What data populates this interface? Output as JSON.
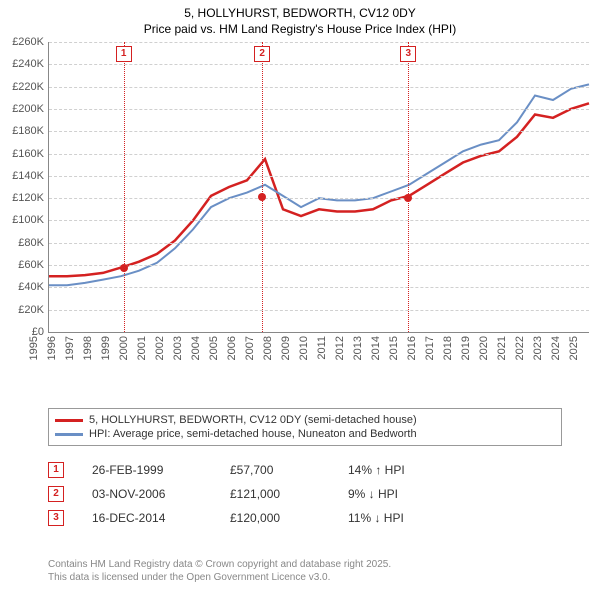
{
  "title_line1": "5, HOLLYHURST, BEDWORTH, CV12 0DY",
  "title_line2": "Price paid vs. HM Land Registry's House Price Index (HPI)",
  "chart": {
    "type": "line",
    "x_years": [
      1995,
      1996,
      1997,
      1998,
      1999,
      2000,
      2001,
      2002,
      2003,
      2004,
      2005,
      2006,
      2007,
      2008,
      2009,
      2010,
      2011,
      2012,
      2013,
      2014,
      2015,
      2016,
      2017,
      2018,
      2019,
      2020,
      2021,
      2022,
      2023,
      2024,
      2025
    ],
    "ylim": [
      0,
      260000
    ],
    "ytick_step": 20000,
    "ytick_prefix": "£",
    "ytick_suffix": "K",
    "background_color": "#ffffff",
    "grid_color": "#d0d0d0",
    "axis_color": "#888888",
    "series": [
      {
        "name": "price_paid",
        "color": "#d42121",
        "width": 2.5,
        "values_by_year": {
          "1995": 50000,
          "1996": 50000,
          "1997": 51000,
          "1998": 53000,
          "1999": 57700,
          "2000": 63000,
          "2001": 70000,
          "2002": 82000,
          "2003": 100000,
          "2004": 122000,
          "2005": 130000,
          "2006": 136000,
          "2007": 155000,
          "2008": 110000,
          "2009": 104000,
          "2010": 110000,
          "2011": 108000,
          "2012": 108000,
          "2013": 110000,
          "2014": 118000,
          "2015": 122000,
          "2016": 132000,
          "2017": 142000,
          "2018": 152000,
          "2019": 158000,
          "2020": 162000,
          "2021": 175000,
          "2022": 195000,
          "2023": 192000,
          "2024": 200000,
          "2025": 205000
        }
      },
      {
        "name": "hpi",
        "color": "#6a8fc5",
        "width": 2,
        "values_by_year": {
          "1995": 42000,
          "1996": 42000,
          "1997": 44000,
          "1998": 47000,
          "1999": 50000,
          "2000": 55000,
          "2001": 62000,
          "2002": 75000,
          "2003": 92000,
          "2004": 112000,
          "2005": 120000,
          "2006": 125000,
          "2007": 132000,
          "2008": 122000,
          "2009": 112000,
          "2010": 120000,
          "2011": 118000,
          "2012": 118000,
          "2013": 120000,
          "2014": 126000,
          "2015": 132000,
          "2016": 142000,
          "2017": 152000,
          "2018": 162000,
          "2019": 168000,
          "2020": 172000,
          "2021": 188000,
          "2022": 212000,
          "2023": 208000,
          "2024": 218000,
          "2025": 222000
        }
      }
    ],
    "sale_markers": [
      {
        "n": "1",
        "year": 1999.15,
        "price": 57700,
        "color": "#d42121"
      },
      {
        "n": "2",
        "year": 2006.84,
        "price": 121000,
        "color": "#d42121"
      },
      {
        "n": "3",
        "year": 2014.96,
        "price": 120000,
        "color": "#d42121"
      }
    ]
  },
  "legend": {
    "items": [
      {
        "color": "#d42121",
        "label": "5, HOLLYHURST, BEDWORTH, CV12 0DY (semi-detached house)"
      },
      {
        "color": "#6a8fc5",
        "label": "HPI: Average price, semi-detached house, Nuneaton and Bedworth"
      }
    ]
  },
  "sales": [
    {
      "n": "1",
      "date": "26-FEB-1999",
      "price": "£57,700",
      "delta": "14% ↑ HPI",
      "color": "#d42121"
    },
    {
      "n": "2",
      "date": "03-NOV-2006",
      "price": "£121,000",
      "delta": "9% ↓ HPI",
      "color": "#d42121"
    },
    {
      "n": "3",
      "date": "16-DEC-2014",
      "price": "£120,000",
      "delta": "11% ↓ HPI",
      "color": "#d42121"
    }
  ],
  "footnote_line1": "Contains HM Land Registry data © Crown copyright and database right 2025.",
  "footnote_line2": "This data is licensed under the Open Government Licence v3.0."
}
